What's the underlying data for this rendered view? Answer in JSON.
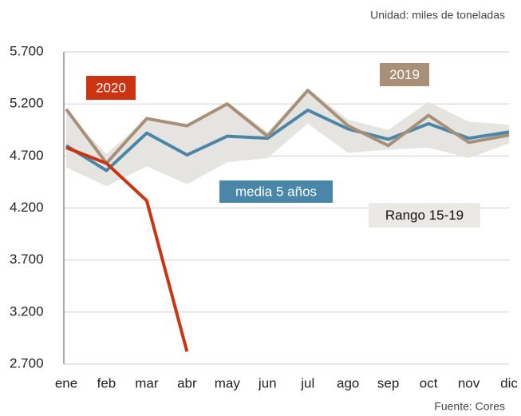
{
  "chart_data": {
    "type": "line",
    "subtitle": "Unidad: miles de toneladas",
    "source": "Fuente: Cores",
    "categories": [
      "ene",
      "feb",
      "mar",
      "abr",
      "may",
      "jun",
      "jul",
      "ago",
      "sep",
      "oct",
      "nov",
      "dic"
    ],
    "ylim": [
      2700,
      5700
    ],
    "yticks": [
      {
        "value": 2700,
        "label": "2.700"
      },
      {
        "value": 3200,
        "label": "3.200"
      },
      {
        "value": 3700,
        "label": "3.700"
      },
      {
        "value": 4200,
        "label": "4.200"
      },
      {
        "value": 4700,
        "label": "4.700"
      },
      {
        "value": 5200,
        "label": "5.200"
      },
      {
        "value": 5700,
        "label": "5.700"
      }
    ],
    "grid": true,
    "series": [
      {
        "name": "Rango 15-19",
        "color": "#e6e4e1",
        "low": [
          4590,
          4410,
          4600,
          4430,
          4640,
          4680,
          5010,
          4730,
          4760,
          4780,
          4680,
          4820
        ],
        "high": [
          5120,
          4720,
          5060,
          4990,
          5220,
          4930,
          5350,
          5050,
          4950,
          5220,
          5030,
          5000
        ]
      },
      {
        "name": "media 5 años",
        "color": "#4a86a8",
        "values": [
          4800,
          4560,
          4920,
          4710,
          4890,
          4870,
          5140,
          4960,
          4860,
          5010,
          4870,
          4930
        ]
      },
      {
        "name": "2019",
        "color": "#a89078",
        "values": [
          5150,
          4630,
          5060,
          4990,
          5200,
          4890,
          5330,
          4990,
          4800,
          5090,
          4830,
          4900
        ]
      },
      {
        "name": "2020",
        "color": "#cc3311",
        "values": [
          4780,
          4630,
          4270,
          2820,
          null,
          null,
          null,
          null,
          null,
          null,
          null,
          null
        ]
      }
    ]
  }
}
